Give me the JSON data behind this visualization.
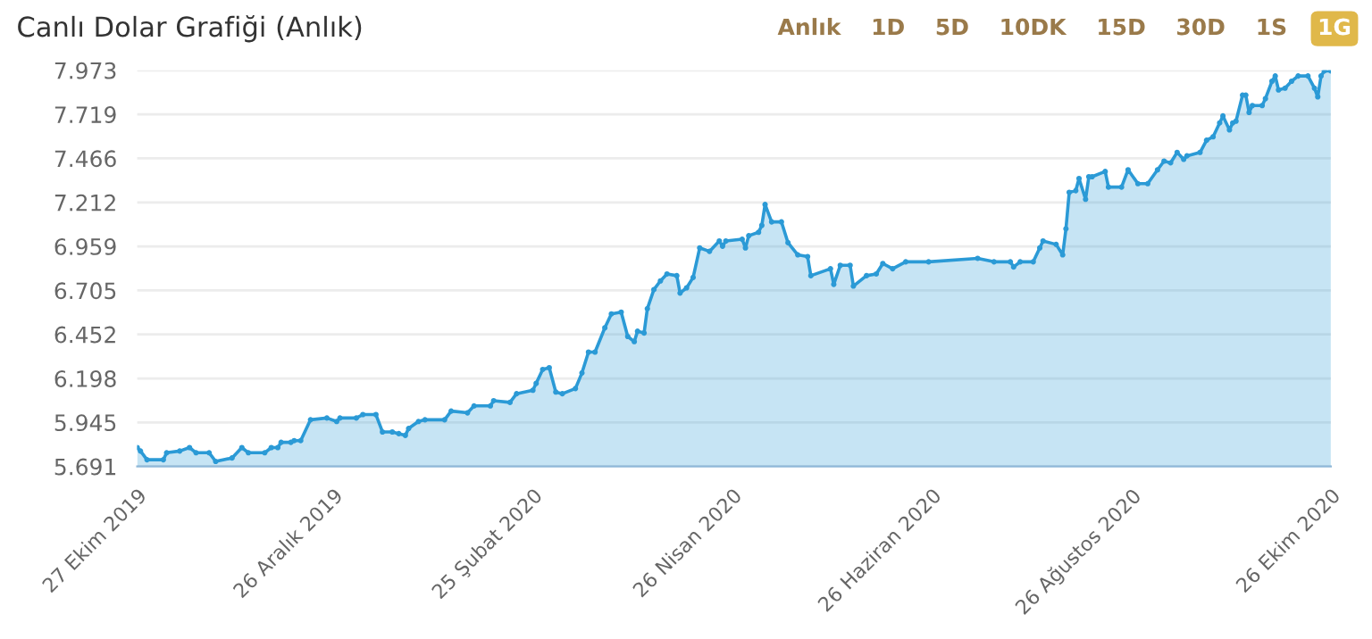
{
  "chart_data": {
    "type": "area",
    "title": "Canlı Dolar Grafiği (Anlık)",
    "annotations": [
      "Anlık",
      "1D",
      "5D",
      "10DK",
      "15D",
      "30D",
      "1S",
      "1G"
    ],
    "x": [
      "2019-10-27",
      "2019-10-28",
      "2019-10-30",
      "2019-11-04",
      "2019-11-05",
      "2019-11-09",
      "2019-11-12",
      "2019-11-14",
      "2019-11-18",
      "2019-11-20",
      "2019-11-25",
      "2019-11-28",
      "2019-11-30",
      "2019-12-05",
      "2019-12-07",
      "2019-12-09",
      "2019-12-10",
      "2019-12-13",
      "2019-12-14",
      "2019-12-16",
      "2019-12-19",
      "2019-12-24",
      "2019-12-27",
      "2019-12-28",
      "2020-01-02",
      "2020-01-04",
      "2020-01-08",
      "2020-01-10",
      "2020-01-13",
      "2020-01-15",
      "2020-01-17",
      "2020-01-18",
      "2020-01-21",
      "2020-01-23",
      "2020-01-29",
      "2020-01-31",
      "2020-02-05",
      "2020-02-07",
      "2020-02-12",
      "2020-02-13",
      "2020-02-18",
      "2020-02-20",
      "2020-02-25",
      "2020-02-26",
      "2020-02-28",
      "2020-03-01",
      "2020-03-03",
      "2020-03-05",
      "2020-03-09",
      "2020-03-11",
      "2020-03-13",
      "2020-03-15",
      "2020-03-18",
      "2020-03-20",
      "2020-03-23",
      "2020-03-25",
      "2020-03-27",
      "2020-03-28",
      "2020-03-30",
      "2020-03-31",
      "2020-04-02",
      "2020-04-04",
      "2020-04-06",
      "2020-04-09",
      "2020-04-10",
      "2020-04-12",
      "2020-04-14",
      "2020-04-16",
      "2020-04-19",
      "2020-04-22",
      "2020-04-23",
      "2020-04-24",
      "2020-04-29",
      "2020-04-30",
      "2020-05-01",
      "2020-05-04",
      "2020-05-05",
      "2020-05-06",
      "2020-05-08",
      "2020-05-11",
      "2020-05-13",
      "2020-05-16",
      "2020-05-19",
      "2020-05-20",
      "2020-05-26",
      "2020-05-27",
      "2020-05-29",
      "2020-06-01",
      "2020-06-02",
      "2020-06-06",
      "2020-06-09",
      "2020-06-11",
      "2020-06-14",
      "2020-06-18",
      "2020-06-25",
      "2020-07-10",
      "2020-07-15",
      "2020-07-20",
      "2020-07-21",
      "2020-07-23",
      "2020-07-27",
      "2020-07-29",
      "2020-07-30",
      "2020-08-03",
      "2020-08-05",
      "2020-08-06",
      "2020-08-07",
      "2020-08-09",
      "2020-08-10",
      "2020-08-12",
      "2020-08-13",
      "2020-08-14",
      "2020-08-18",
      "2020-08-19",
      "2020-08-23",
      "2020-08-25",
      "2020-08-28",
      "2020-08-31",
      "2020-09-03",
      "2020-09-05",
      "2020-09-07",
      "2020-09-09",
      "2020-09-11",
      "2020-09-12",
      "2020-09-16",
      "2020-09-18",
      "2020-09-20",
      "2020-09-22",
      "2020-09-23",
      "2020-09-25",
      "2020-09-26",
      "2020-09-27",
      "2020-09-29",
      "2020-09-30",
      "2020-10-01",
      "2020-10-02",
      "2020-10-05",
      "2020-10-06",
      "2020-10-08",
      "2020-10-09",
      "2020-10-10",
      "2020-10-12",
      "2020-10-14",
      "2020-10-16",
      "2020-10-19",
      "2020-10-21",
      "2020-10-22",
      "2020-10-23",
      "2020-10-24",
      "2020-10-26"
    ],
    "series": [
      {
        "color": "#2b9ad6",
        "values": [
          5.8,
          5.78,
          5.73,
          5.73,
          5.77,
          5.78,
          5.8,
          5.77,
          5.77,
          5.72,
          5.74,
          5.8,
          5.77,
          5.77,
          5.8,
          5.8,
          5.83,
          5.83,
          5.84,
          5.84,
          5.96,
          5.97,
          5.95,
          5.97,
          5.97,
          5.99,
          5.99,
          5.89,
          5.89,
          5.88,
          5.87,
          5.91,
          5.95,
          5.96,
          5.96,
          6.01,
          6.0,
          6.04,
          6.04,
          6.07,
          6.06,
          6.11,
          6.13,
          6.17,
          6.25,
          6.26,
          6.12,
          6.11,
          6.14,
          6.23,
          6.35,
          6.35,
          6.49,
          6.57,
          6.58,
          6.44,
          6.41,
          6.47,
          6.46,
          6.6,
          6.71,
          6.76,
          6.8,
          6.79,
          6.69,
          6.72,
          6.78,
          6.95,
          6.93,
          6.99,
          6.96,
          6.99,
          7.0,
          6.95,
          7.02,
          7.04,
          7.08,
          7.2,
          7.1,
          7.1,
          6.98,
          6.91,
          6.9,
          6.79,
          6.83,
          6.74,
          6.85,
          6.85,
          6.73,
          6.79,
          6.8,
          6.86,
          6.83,
          6.87,
          6.87,
          6.89,
          6.87,
          6.87,
          6.84,
          6.87,
          6.87,
          6.95,
          6.99,
          6.97,
          6.91,
          7.06,
          7.27,
          7.28,
          7.35,
          7.23,
          7.36,
          7.36,
          7.39,
          7.3,
          7.3,
          7.4,
          7.32,
          7.32,
          7.4,
          7.45,
          7.44,
          7.5,
          7.46,
          7.48,
          7.5,
          7.57,
          7.59,
          7.67,
          7.71,
          7.63,
          7.67,
          7.68,
          7.83,
          7.83,
          7.73,
          7.77,
          7.77,
          7.81,
          7.91,
          7.94,
          7.86,
          7.87,
          7.91,
          7.94,
          7.94,
          7.87,
          7.82,
          7.94,
          7.97,
          7.97
        ]
      }
    ],
    "xlim": [
      "2019-10-27",
      "2020-10-26"
    ],
    "xticks": [
      {
        "value": "2019-10-27",
        "label": "27 Ekim 2019"
      },
      {
        "value": "2019-12-26",
        "label": "26 Aralık 2019"
      },
      {
        "value": "2020-02-25",
        "label": "25 Şubat 2020"
      },
      {
        "value": "2020-04-26",
        "label": "26 Nisan 2020"
      },
      {
        "value": "2020-06-26",
        "label": "26 Haziran 2020"
      },
      {
        "value": "2020-08-26",
        "label": "26 Ağustos 2020"
      },
      {
        "value": "2020-10-26",
        "label": "26 Ekim 2020"
      }
    ],
    "ylim": [
      5.691,
      7.973
    ],
    "yticks": [
      5.691,
      5.945,
      6.198,
      6.452,
      6.705,
      6.959,
      7.212,
      7.466,
      7.719,
      7.973
    ],
    "grid": "y",
    "legend": false,
    "marker": "circle",
    "line_style": "solid"
  }
}
